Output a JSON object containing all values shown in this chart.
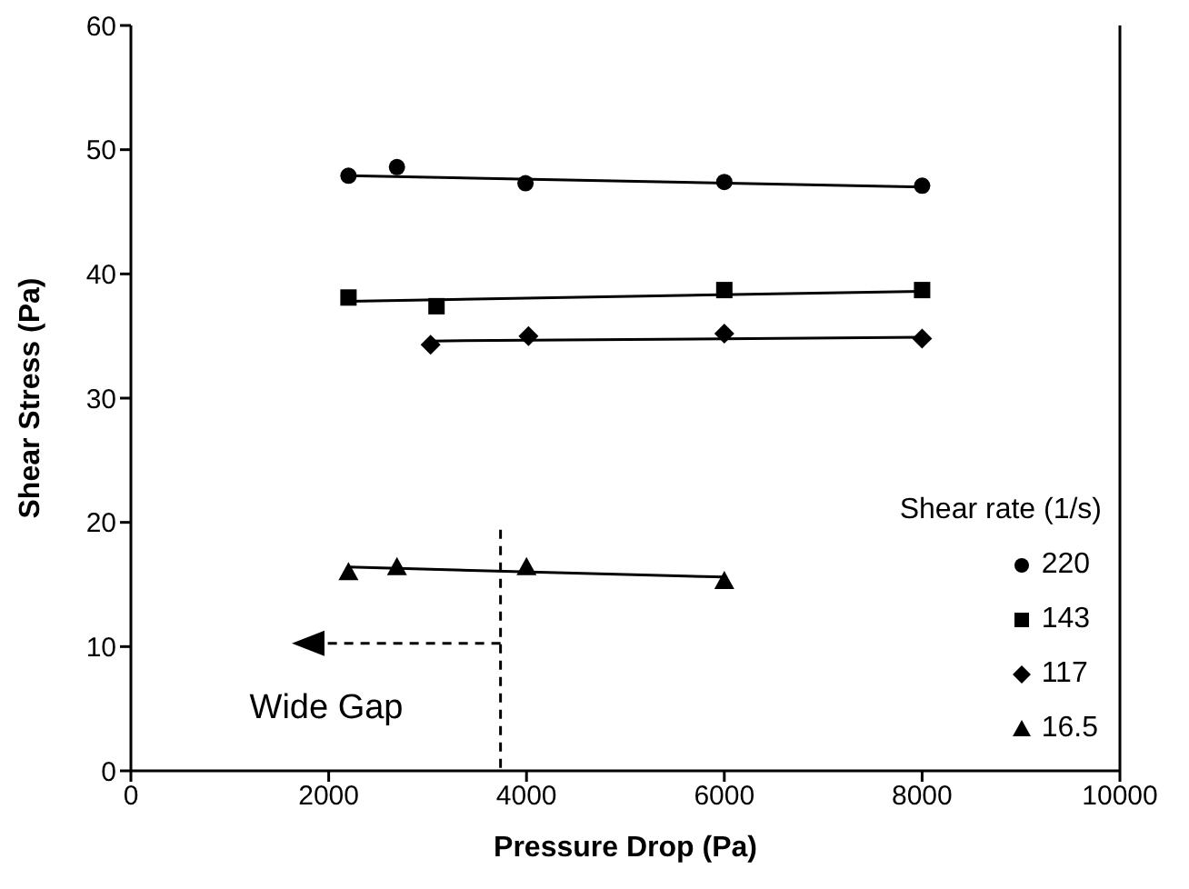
{
  "chart_data": {
    "type": "scatter",
    "xlabel": "Pressure Drop (Pa)",
    "ylabel": "Shear Stress (Pa)",
    "legend_title": "Shear rate (1/s)",
    "legend": "bottom right",
    "grid": false,
    "xlim": [
      0,
      10000
    ],
    "xticks": [
      0,
      2000,
      4000,
      6000,
      8000,
      10000
    ],
    "ylim": [
      0,
      60
    ],
    "yticks": [
      0,
      10,
      20,
      30,
      40,
      50,
      60
    ],
    "annotations": [
      "Wide Gap"
    ],
    "series": [
      {
        "name": "220",
        "color": "#000000",
        "marker": "circle",
        "x": [
          2200,
          2690,
          3990,
          6000,
          8000
        ],
        "values": [
          47.9,
          48.6,
          47.3,
          47.4,
          47.1
        ]
      },
      {
        "name": "143",
        "color": "#000000",
        "marker": "square",
        "x": [
          2200,
          3090,
          6000,
          8000
        ],
        "values": [
          38.1,
          37.4,
          38.7,
          38.7
        ]
      },
      {
        "name": "117",
        "color": "#000000",
        "marker": "diamond",
        "x": [
          3030,
          4020,
          6000,
          8000
        ],
        "values": [
          34.3,
          35.0,
          35.2,
          34.8
        ]
      },
      {
        "name": "16.5",
        "color": "#000000",
        "marker": "triangle",
        "x": [
          2200,
          2690,
          4000,
          6000
        ],
        "values": [
          16.0,
          16.4,
          16.4,
          15.3
        ]
      },
      {
        "type": "line",
        "color": "#000000",
        "line_style": "solid",
        "marker": "none",
        "x": [
          2200,
          8000
        ],
        "values": [
          47.9,
          47.0
        ]
      },
      {
        "type": "line",
        "color": "#000000",
        "line_style": "solid",
        "marker": "none",
        "x": [
          2200,
          8000
        ],
        "values": [
          37.8,
          38.6
        ]
      },
      {
        "type": "line",
        "color": "#000000",
        "line_style": "solid",
        "marker": "none",
        "x": [
          3030,
          8000
        ],
        "values": [
          34.6,
          34.9
        ]
      },
      {
        "type": "line",
        "color": "#000000",
        "line_style": "solid",
        "marker": "none",
        "x": [
          2200,
          6000
        ],
        "values": [
          16.4,
          15.6
        ]
      }
    ]
  }
}
